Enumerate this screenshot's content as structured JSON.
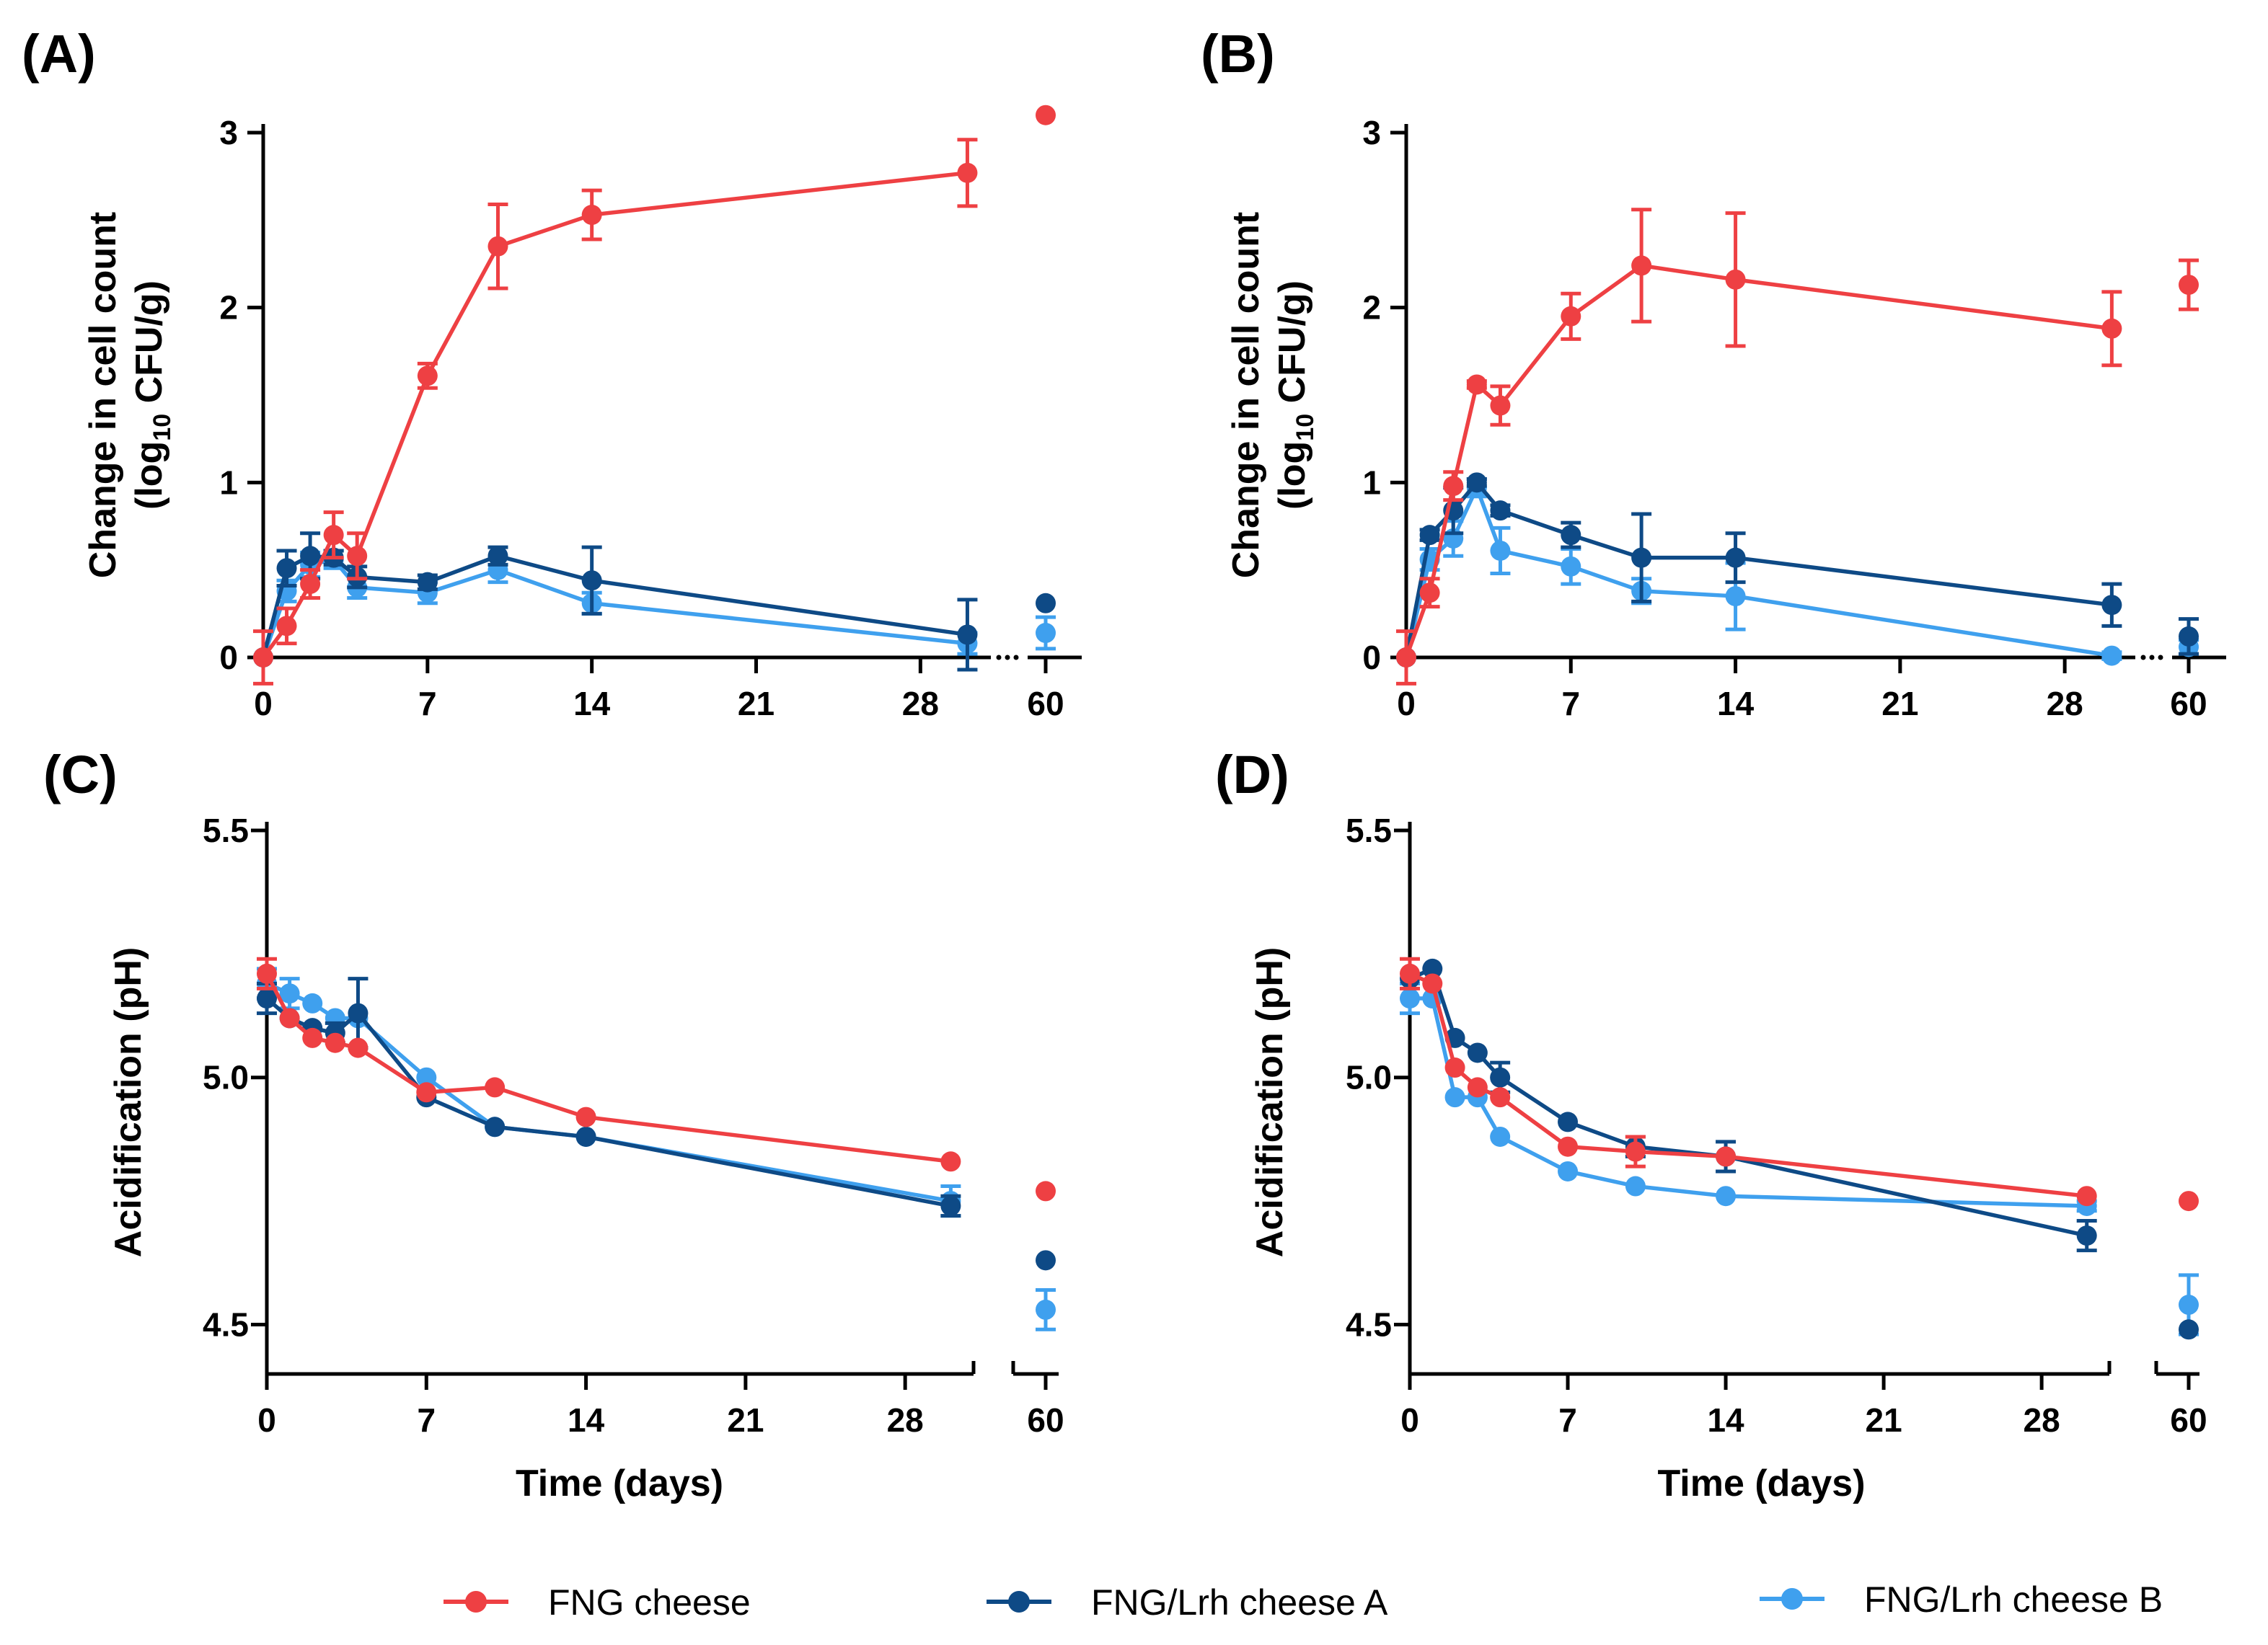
{
  "colors": {
    "fng": "#ee4043",
    "lrhA": "#0e4a86",
    "lrhB": "#3fa0ee",
    "axis": "#000000"
  },
  "legend": [
    {
      "key": "fng",
      "label": "FNG cheese"
    },
    {
      "key": "lrhA",
      "label": "FNG/Lrh cheese A"
    },
    {
      "key": "lrhB",
      "label": "FNG/Lrh cheese B"
    }
  ],
  "chart_data": [
    {
      "id": "A",
      "panel_label": "(A)",
      "type": "line",
      "ylabel": "Change in cell count",
      "ylabel_line2": [
        "(log",
        "10",
        " CFU/g)"
      ],
      "xlabel": "",
      "ylim": [
        0,
        3
      ],
      "yticks": [
        0,
        1,
        2,
        3
      ],
      "ytick_labels": [
        "0",
        "1",
        "2",
        "3"
      ],
      "xlim": [
        0,
        31
      ],
      "xticks": [
        0,
        7,
        14,
        21,
        28
      ],
      "xtick_labels": [
        "0",
        "7",
        "14",
        "21",
        "28"
      ],
      "extra_x": 60,
      "extra_label": "60",
      "axis_break": "dots",
      "series": [
        {
          "key": "fng",
          "name": "FNG cheese",
          "points": [
            [
              0,
              0,
              0.15
            ],
            [
              1,
              0.18,
              0.1
            ],
            [
              2,
              0.42,
              0.08
            ],
            [
              3,
              0.7,
              0.13
            ],
            [
              4,
              0.58,
              0.13
            ],
            [
              7,
              1.61,
              0.07
            ],
            [
              10,
              2.35,
              0.24
            ],
            [
              14,
              2.53,
              0.14
            ],
            [
              30,
              2.77,
              0.19
            ]
          ],
          "extra": [
            3.1,
            0
          ]
        },
        {
          "key": "lrhA",
          "name": "FNG/Lrh cheese A",
          "points": [
            [
              0,
              0,
              0
            ],
            [
              1,
              0.51,
              0.1
            ],
            [
              2,
              0.58,
              0.13
            ],
            [
              3,
              0.57,
              0.04
            ],
            [
              4,
              0.46,
              0.06
            ],
            [
              7,
              0.43,
              0.04
            ],
            [
              10,
              0.58,
              0.05
            ],
            [
              14,
              0.44,
              0.19
            ],
            [
              30,
              0.13,
              0.2
            ]
          ],
          "extra": [
            0.31,
            0
          ]
        },
        {
          "key": "lrhB",
          "name": "FNG/Lrh cheese B",
          "points": [
            [
              0,
              0,
              0
            ],
            [
              1,
              0.38,
              0.06
            ],
            [
              2,
              0.53,
              0.07
            ],
            [
              3,
              0.56,
              0.05
            ],
            [
              4,
              0.4,
              0.06
            ],
            [
              7,
              0.37,
              0.06
            ],
            [
              10,
              0.5,
              0.07
            ],
            [
              14,
              0.31,
              0.06
            ],
            [
              30,
              0.08,
              0.06
            ]
          ],
          "extra": [
            0.14,
            0.09
          ]
        }
      ]
    },
    {
      "id": "B",
      "panel_label": "(B)",
      "type": "line",
      "ylabel": "Change in cell count",
      "ylabel_line2": [
        "(log",
        "10",
        " CFU/g)"
      ],
      "xlabel": "",
      "ylim": [
        0,
        3
      ],
      "yticks": [
        0,
        1,
        2,
        3
      ],
      "ytick_labels": [
        "0",
        "1",
        "2",
        "3"
      ],
      "xlim": [
        0,
        31
      ],
      "xticks": [
        0,
        7,
        14,
        21,
        28
      ],
      "xtick_labels": [
        "0",
        "7",
        "14",
        "21",
        "28"
      ],
      "extra_x": 60,
      "extra_label": "60",
      "axis_break": "dots",
      "series": [
        {
          "key": "fng",
          "name": "FNG cheese",
          "points": [
            [
              0,
              0,
              0.15
            ],
            [
              1,
              0.37,
              0.08
            ],
            [
              2,
              0.98,
              0.08
            ],
            [
              3,
              1.56,
              0.02
            ],
            [
              4,
              1.44,
              0.11
            ],
            [
              7,
              1.95,
              0.13
            ],
            [
              10,
              2.24,
              0.32
            ],
            [
              14,
              2.16,
              0.38
            ],
            [
              30,
              1.88,
              0.21
            ]
          ],
          "extra": [
            2.13,
            0.14
          ]
        },
        {
          "key": "lrhA",
          "name": "FNG/Lrh cheese A",
          "points": [
            [
              0,
              0,
              0
            ],
            [
              1,
              0.7,
              0.03
            ],
            [
              2,
              0.84,
              0.13
            ],
            [
              3,
              1.0,
              0.02
            ],
            [
              4,
              0.84,
              0.03
            ],
            [
              7,
              0.7,
              0.07
            ],
            [
              10,
              0.57,
              0.25
            ],
            [
              14,
              0.57,
              0.14
            ],
            [
              30,
              0.3,
              0.12
            ]
          ],
          "extra": [
            0.12,
            0.1
          ]
        },
        {
          "key": "lrhB",
          "name": "FNG/Lrh cheese B",
          "points": [
            [
              0,
              0,
              0
            ],
            [
              1,
              0.56,
              0.06
            ],
            [
              2,
              0.68,
              0.1
            ],
            [
              3,
              0.97,
              0.05
            ],
            [
              4,
              0.61,
              0.13
            ],
            [
              7,
              0.52,
              0.1
            ],
            [
              10,
              0.38,
              0.07
            ],
            [
              14,
              0.35,
              0.19
            ],
            [
              30,
              0.01,
              0.02
            ]
          ],
          "extra": [
            0.06,
            0.04
          ]
        }
      ]
    },
    {
      "id": "C",
      "panel_label": "(C)",
      "type": "line",
      "ylabel": "Acidification (pH)",
      "ylabel_line2": null,
      "xlabel": "Time (days)",
      "ylim": [
        4.4,
        5.5
      ],
      "yticks": [
        4.5,
        5.0,
        5.5
      ],
      "ytick_labels": [
        "4.5",
        "5.0",
        "5.5"
      ],
      "xlim": [
        0,
        31
      ],
      "xticks": [
        0,
        7,
        14,
        21,
        28
      ],
      "xtick_labels": [
        "0",
        "7",
        "14",
        "21",
        "28"
      ],
      "extra_x": 60,
      "extra_label": "60",
      "axis_break": "segments",
      "series": [
        {
          "key": "fng",
          "name": "FNG cheese",
          "points": [
            [
              0,
              5.21,
              0.03
            ],
            [
              1,
              5.12,
              0
            ],
            [
              2,
              5.08,
              0
            ],
            [
              3,
              5.07,
              0
            ],
            [
              4,
              5.06,
              0
            ],
            [
              7,
              4.97,
              0
            ],
            [
              10,
              4.98,
              0
            ],
            [
              14,
              4.92,
              0
            ],
            [
              30,
              4.83,
              0
            ]
          ],
          "extra": [
            4.77,
            0
          ]
        },
        {
          "key": "lrhA",
          "name": "FNG/Lrh cheese A",
          "points": [
            [
              0,
              5.16,
              0.03
            ],
            [
              1,
              5.12,
              0
            ],
            [
              2,
              5.1,
              0
            ],
            [
              3,
              5.09,
              0.02
            ],
            [
              4,
              5.13,
              0.07
            ],
            [
              7,
              4.96,
              0
            ],
            [
              10,
              4.9,
              0
            ],
            [
              14,
              4.88,
              0
            ],
            [
              30,
              4.74,
              0.02
            ]
          ],
          "extra": [
            4.63,
            0
          ]
        },
        {
          "key": "lrhB",
          "name": "FNG/Lrh cheese B",
          "points": [
            [
              0,
              5.19,
              0.03
            ],
            [
              1,
              5.17,
              0.03
            ],
            [
              2,
              5.15,
              0
            ],
            [
              3,
              5.12,
              0
            ],
            [
              4,
              5.12,
              0
            ],
            [
              7,
              5.0,
              0
            ],
            [
              10,
              4.9,
              0
            ],
            [
              14,
              4.88,
              0
            ],
            [
              30,
              4.75,
              0.03
            ]
          ],
          "extra": [
            4.53,
            0.04
          ]
        }
      ]
    },
    {
      "id": "D",
      "panel_label": "(D)",
      "type": "line",
      "ylabel": "Acidification (pH)",
      "ylabel_line2": null,
      "xlabel": "Time (days)",
      "ylim": [
        4.4,
        5.5
      ],
      "yticks": [
        4.5,
        5.0,
        5.5
      ],
      "ytick_labels": [
        "4.5",
        "5.0",
        "5.5"
      ],
      "xlim": [
        0,
        31
      ],
      "xticks": [
        0,
        7,
        14,
        21,
        28
      ],
      "xtick_labels": [
        "0",
        "7",
        "14",
        "21",
        "28"
      ],
      "extra_x": 60,
      "extra_label": "60",
      "axis_break": "segments",
      "series": [
        {
          "key": "fng",
          "name": "FNG cheese",
          "points": [
            [
              0,
              5.21,
              0.03
            ],
            [
              1,
              5.19,
              0
            ],
            [
              2,
              5.02,
              0
            ],
            [
              3,
              4.98,
              0
            ],
            [
              4,
              4.96,
              0
            ],
            [
              7,
              4.86,
              0
            ],
            [
              10,
              4.85,
              0.03
            ],
            [
              14,
              4.84,
              0
            ],
            [
              30,
              4.76,
              0
            ]
          ],
          "extra": [
            4.75,
            0
          ]
        },
        {
          "key": "lrhA",
          "name": "FNG/Lrh cheese A",
          "points": [
            [
              0,
              5.2,
              0
            ],
            [
              1,
              5.22,
              0
            ],
            [
              2,
              5.08,
              0
            ],
            [
              3,
              5.05,
              0
            ],
            [
              4,
              5.0,
              0.03
            ],
            [
              7,
              4.91,
              0
            ],
            [
              10,
              4.86,
              0.02
            ],
            [
              14,
              4.84,
              0.03
            ],
            [
              30,
              4.68,
              0.03
            ]
          ],
          "extra": [
            4.49,
            0
          ]
        },
        {
          "key": "lrhB",
          "name": "FNG/Lrh cheese B",
          "points": [
            [
              0,
              5.16,
              0.03
            ],
            [
              1,
              5.16,
              0
            ],
            [
              2,
              4.96,
              0
            ],
            [
              3,
              4.96,
              0
            ],
            [
              4,
              4.88,
              0
            ],
            [
              7,
              4.81,
              0
            ],
            [
              10,
              4.78,
              0
            ],
            [
              14,
              4.76,
              0
            ],
            [
              30,
              4.74,
              0.01
            ]
          ],
          "extra": [
            4.54,
            0.06
          ]
        }
      ]
    }
  ]
}
